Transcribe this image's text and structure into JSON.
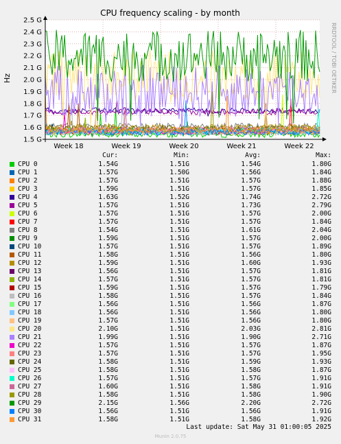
{
  "chart_data": {
    "type": "line",
    "title": "CPU frequency scaling - by month",
    "ylabel": "Hz",
    "side_label": "RRDTOOL / TOBI OETIKER",
    "ylim": [
      1.5,
      2.5
    ],
    "yticks": [
      "1.5 G",
      "1.6 G",
      "1.7 G",
      "1.8 G",
      "1.9 G",
      "2.0 G",
      "2.1 G",
      "2.2 G",
      "2.3 G",
      "2.4 G",
      "2.5 G"
    ],
    "ytick_values": [
      1.5,
      1.6,
      1.7,
      1.8,
      1.9,
      2.0,
      2.1,
      2.2,
      2.3,
      2.4,
      2.5
    ],
    "xticks": [
      "Week 18",
      "Week 19",
      "Week 20",
      "Week 21",
      "Week 22"
    ],
    "grid": true,
    "series": [
      {
        "name": "CPU 0",
        "color": "#00cc00",
        "cur": "1.54G",
        "min": "1.51G",
        "avg": "1.54G",
        "max": "1.80G",
        "avgv": 1.54
      },
      {
        "name": "CPU 1",
        "color": "#0066b3",
        "cur": "1.57G",
        "min": "1.50G",
        "avg": "1.56G",
        "max": "1.84G",
        "avgv": 1.56
      },
      {
        "name": "CPU 2",
        "color": "#ff8000",
        "cur": "1.57G",
        "min": "1.51G",
        "avg": "1.57G",
        "max": "1.88G",
        "avgv": 1.57
      },
      {
        "name": "CPU 3",
        "color": "#ffcc00",
        "cur": "1.59G",
        "min": "1.51G",
        "avg": "1.57G",
        "max": "1.85G",
        "avgv": 1.57
      },
      {
        "name": "CPU 4",
        "color": "#330099",
        "cur": "1.63G",
        "min": "1.52G",
        "avg": "1.74G",
        "max": "2.72G",
        "avgv": 1.74
      },
      {
        "name": "CPU 5",
        "color": "#990099",
        "cur": "1.57G",
        "min": "1.51G",
        "avg": "1.73G",
        "max": "2.79G",
        "avgv": 1.73
      },
      {
        "name": "CPU 6",
        "color": "#ccff00",
        "cur": "1.57G",
        "min": "1.51G",
        "avg": "1.57G",
        "max": "2.00G",
        "avgv": 1.57
      },
      {
        "name": "CPU 7",
        "color": "#ff0000",
        "cur": "1.57G",
        "min": "1.51G",
        "avg": "1.57G",
        "max": "1.84G",
        "avgv": 1.57
      },
      {
        "name": "CPU 8",
        "color": "#808080",
        "cur": "1.54G",
        "min": "1.51G",
        "avg": "1.61G",
        "max": "2.04G",
        "avgv": 1.61
      },
      {
        "name": "CPU 9",
        "color": "#008f00",
        "cur": "1.59G",
        "min": "1.51G",
        "avg": "1.57G",
        "max": "2.00G",
        "avgv": 1.57
      },
      {
        "name": "CPU 10",
        "color": "#00487d",
        "cur": "1.57G",
        "min": "1.51G",
        "avg": "1.57G",
        "max": "1.89G",
        "avgv": 1.57
      },
      {
        "name": "CPU 11",
        "color": "#b35a00",
        "cur": "1.58G",
        "min": "1.51G",
        "avg": "1.56G",
        "max": "1.80G",
        "avgv": 1.56
      },
      {
        "name": "CPU 12",
        "color": "#b38f00",
        "cur": "1.59G",
        "min": "1.51G",
        "avg": "1.60G",
        "max": "1.93G",
        "avgv": 1.6
      },
      {
        "name": "CPU 13",
        "color": "#6b006b",
        "cur": "1.56G",
        "min": "1.51G",
        "avg": "1.57G",
        "max": "1.81G",
        "avgv": 1.57
      },
      {
        "name": "CPU 14",
        "color": "#8fb300",
        "cur": "1.57G",
        "min": "1.51G",
        "avg": "1.57G",
        "max": "1.81G",
        "avgv": 1.57
      },
      {
        "name": "CPU 15",
        "color": "#b30000",
        "cur": "1.59G",
        "min": "1.51G",
        "avg": "1.57G",
        "max": "1.79G",
        "avgv": 1.57
      },
      {
        "name": "CPU 16",
        "color": "#bebebe",
        "cur": "1.58G",
        "min": "1.51G",
        "avg": "1.57G",
        "max": "1.84G",
        "avgv": 1.57
      },
      {
        "name": "CPU 17",
        "color": "#80ff80",
        "cur": "1.56G",
        "min": "1.51G",
        "avg": "1.56G",
        "max": "1.87G",
        "avgv": 1.56
      },
      {
        "name": "CPU 18",
        "color": "#80c9ff",
        "cur": "1.56G",
        "min": "1.51G",
        "avg": "1.56G",
        "max": "1.80G",
        "avgv": 1.56
      },
      {
        "name": "CPU 19",
        "color": "#ffc080",
        "cur": "1.57G",
        "min": "1.51G",
        "avg": "1.56G",
        "max": "1.80G",
        "avgv": 1.56
      },
      {
        "name": "CPU 20",
        "color": "#ffe680",
        "cur": "2.10G",
        "min": "1.51G",
        "avg": "2.03G",
        "max": "2.81G",
        "avgv": 2.03
      },
      {
        "name": "CPU 21",
        "color": "#aa80ff",
        "cur": "1.99G",
        "min": "1.51G",
        "avg": "1.90G",
        "max": "2.71G",
        "avgv": 1.9
      },
      {
        "name": "CPU 22",
        "color": "#ee00cc",
        "cur": "1.57G",
        "min": "1.51G",
        "avg": "1.57G",
        "max": "1.87G",
        "avgv": 1.57
      },
      {
        "name": "CPU 23",
        "color": "#ff8080",
        "cur": "1.57G",
        "min": "1.51G",
        "avg": "1.57G",
        "max": "1.95G",
        "avgv": 1.57
      },
      {
        "name": "CPU 24",
        "color": "#666600",
        "cur": "1.58G",
        "min": "1.51G",
        "avg": "1.59G",
        "max": "1.93G",
        "avgv": 1.59
      },
      {
        "name": "CPU 25",
        "color": "#ffbfff",
        "cur": "1.58G",
        "min": "1.51G",
        "avg": "1.58G",
        "max": "1.87G",
        "avgv": 1.58
      },
      {
        "name": "CPU 26",
        "color": "#00ffcc",
        "cur": "1.57G",
        "min": "1.51G",
        "avg": "1.57G",
        "max": "1.91G",
        "avgv": 1.57
      },
      {
        "name": "CPU 27",
        "color": "#cc6699",
        "cur": "1.60G",
        "min": "1.51G",
        "avg": "1.58G",
        "max": "1.91G",
        "avgv": 1.58
      },
      {
        "name": "CPU 28",
        "color": "#999900",
        "cur": "1.58G",
        "min": "1.51G",
        "avg": "1.58G",
        "max": "1.90G",
        "avgv": 1.58
      },
      {
        "name": "CPU 29",
        "color": "#009900",
        "cur": "2.15G",
        "min": "1.56G",
        "avg": "2.20G",
        "max": "2.72G",
        "avgv": 2.2
      },
      {
        "name": "CPU 30",
        "color": "#0080ff",
        "cur": "1.56G",
        "min": "1.51G",
        "avg": "1.56G",
        "max": "1.91G",
        "avgv": 1.56
      },
      {
        "name": "CPU 31",
        "color": "#ff9933",
        "cur": "1.58G",
        "min": "1.51G",
        "avg": "1.58G",
        "max": "1.92G",
        "avgv": 1.58
      }
    ]
  },
  "legend_header": {
    "cur": "Cur:",
    "min": "Min:",
    "avg": "Avg:",
    "max": "Max:"
  },
  "last_update": "Last update: Sat May 31 01:00:05 2025",
  "footer": "Munin 2.0.75"
}
